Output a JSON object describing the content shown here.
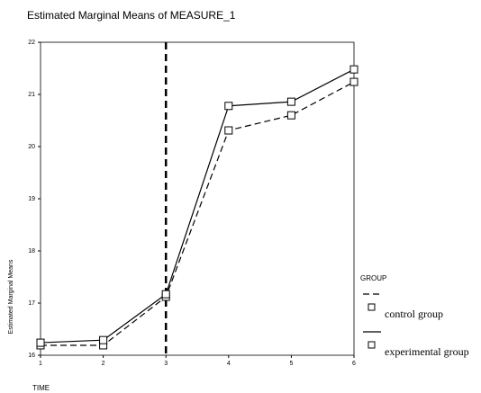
{
  "chart_data": {
    "type": "line",
    "title": "Estimated Marginal Means of MEASURE_1",
    "x_label": "TIME",
    "y_label": "Estimated Marginal Means",
    "x": [
      1,
      2,
      3,
      4,
      5,
      6
    ],
    "xlim": [
      1,
      6
    ],
    "xticks": [
      1,
      2,
      3,
      4,
      5,
      6
    ],
    "ylim": [
      16,
      22
    ],
    "yticks": [
      16,
      17,
      18,
      19,
      20,
      21,
      22
    ],
    "vline_x": 3,
    "legend_title": "GROUP",
    "series": [
      {
        "name": "control group",
        "color": "#000000",
        "dash": true,
        "values": [
          16.19,
          16.19,
          17.12,
          20.31,
          20.6,
          21.24
        ]
      },
      {
        "name": "experimental group",
        "color": "#000000",
        "dash": false,
        "values": [
          16.24,
          16.29,
          17.17,
          20.78,
          20.86,
          21.48
        ]
      }
    ]
  }
}
